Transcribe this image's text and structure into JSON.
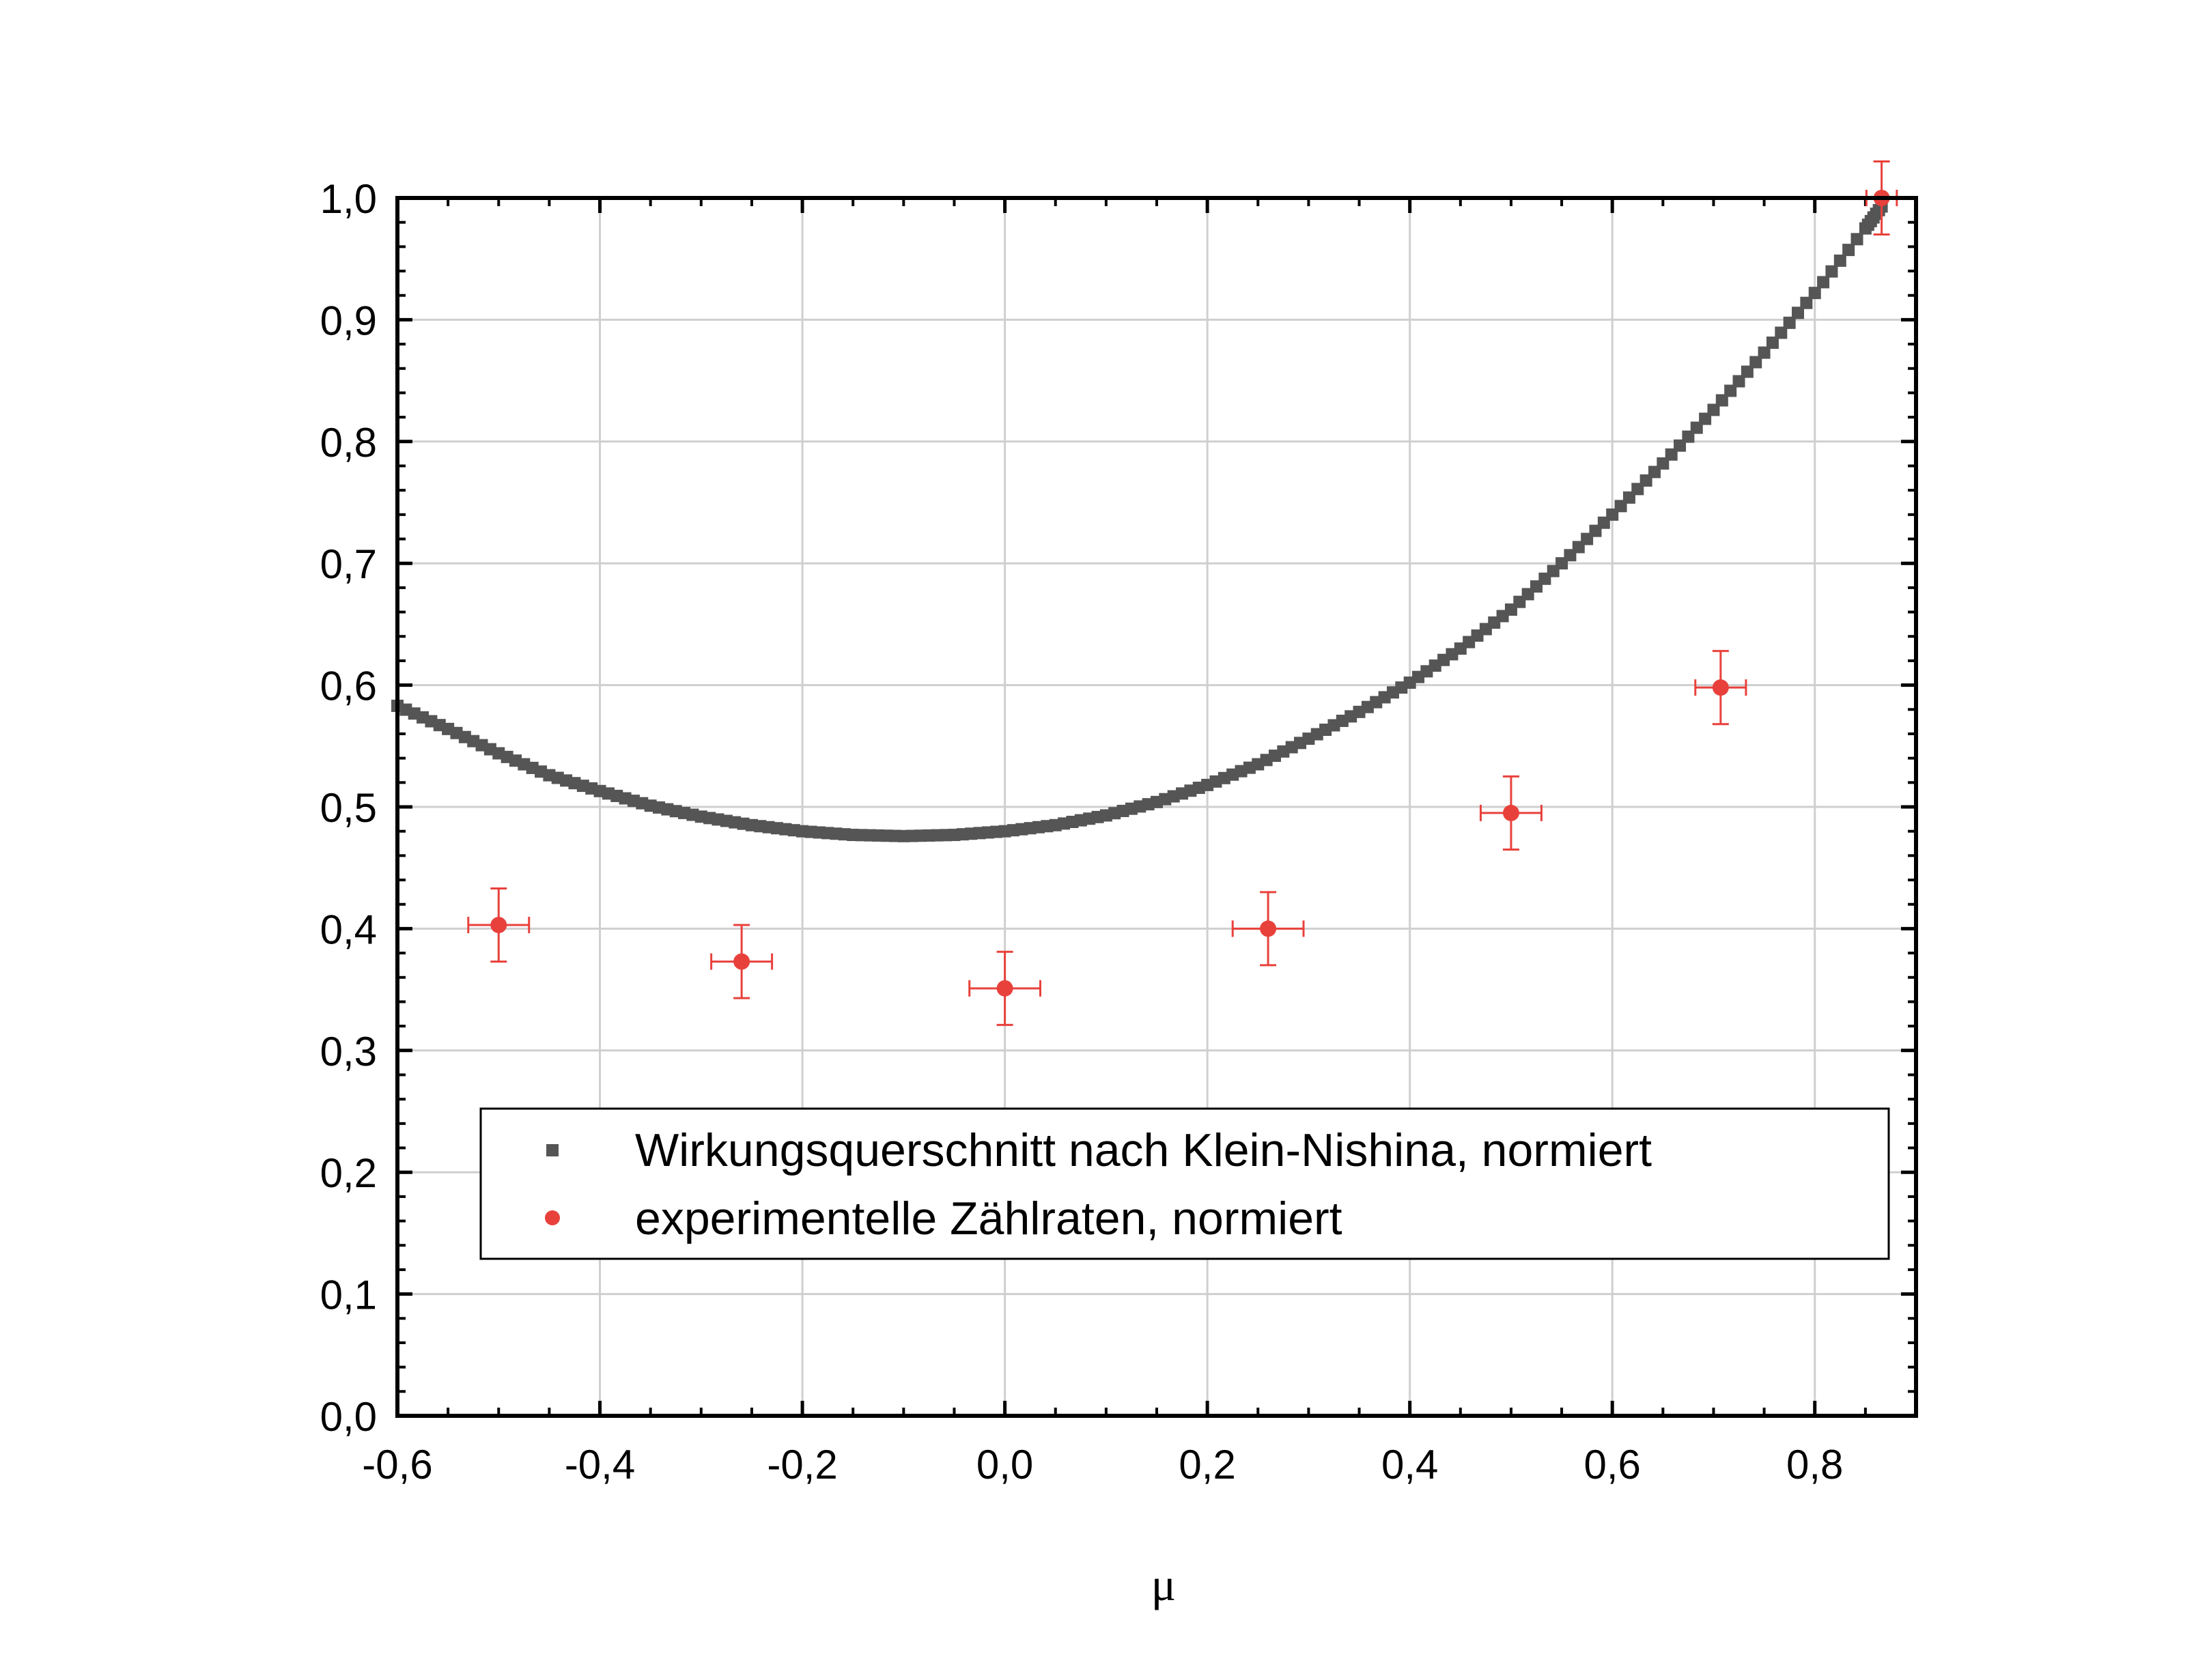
{
  "chart_data": {
    "type": "scatter",
    "title": "",
    "xlabel": "μ",
    "ylabel": "",
    "xlim": [
      -0.6,
      0.9
    ],
    "ylim": [
      0.0,
      1.0
    ],
    "xticks": [
      -0.6,
      -0.4,
      -0.2,
      0.0,
      0.2,
      0.4,
      0.6,
      0.8
    ],
    "xtick_labels": [
      "-0,6",
      "-0,4",
      "-0,2",
      "0,0",
      "0,2",
      "0,4",
      "0,6",
      "0,8"
    ],
    "yticks": [
      0.0,
      0.1,
      0.2,
      0.3,
      0.4,
      0.5,
      0.6,
      0.7,
      0.8,
      0.9,
      1.0
    ],
    "ytick_labels": [
      "0,0",
      "0,1",
      "0,2",
      "0,3",
      "0,4",
      "0,5",
      "0,6",
      "0,7",
      "0,8",
      "0,9",
      "1,0"
    ],
    "grid": true,
    "legend_position": "lower-right",
    "series": [
      {
        "name": "Wirkungsquerschnitt nach Klein-Nishina, normiert",
        "marker": "square",
        "color": "#555555",
        "x": [
          -0.6,
          -0.55,
          -0.5,
          -0.45,
          -0.4,
          -0.35,
          -0.3,
          -0.25,
          -0.2,
          -0.15,
          -0.1,
          -0.05,
          0.0,
          0.05,
          0.1,
          0.15,
          0.2,
          0.25,
          0.3,
          0.35,
          0.4,
          0.45,
          0.5,
          0.55,
          0.6,
          0.65,
          0.7,
          0.75,
          0.8,
          0.85,
          0.866
        ],
        "y": [
          0.583,
          0.564,
          0.544,
          0.526,
          0.513,
          0.501,
          0.492,
          0.485,
          0.48,
          0.477,
          0.476,
          0.477,
          0.48,
          0.485,
          0.493,
          0.504,
          0.518,
          0.535,
          0.556,
          0.578,
          0.602,
          0.63,
          0.662,
          0.7,
          0.74,
          0.782,
          0.826,
          0.873,
          0.922,
          0.975,
          0.993
        ]
      },
      {
        "name": "experimentelle Zählraten, normiert",
        "marker": "circle",
        "color": "#e8413c",
        "x": [
          -0.5,
          -0.26,
          0.0,
          0.26,
          0.5,
          0.707,
          0.866
        ],
        "y": [
          0.403,
          0.373,
          0.351,
          0.4,
          0.495,
          0.598,
          1.0
        ],
        "x_err": [
          0.03,
          0.03,
          0.035,
          0.035,
          0.03,
          0.025,
          0.015
        ],
        "y_err": [
          0.03,
          0.03,
          0.03,
          0.03,
          0.03,
          0.03,
          0.03
        ]
      }
    ]
  }
}
